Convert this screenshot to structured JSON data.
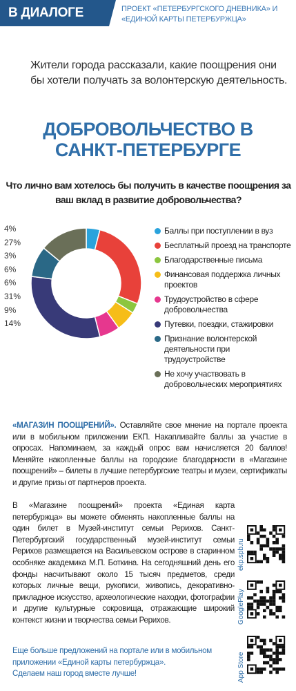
{
  "header": {
    "badge": "В ДИАЛОГЕ",
    "project": "ПРОЕКТ «ПЕТЕРБУРГСКОГО ДНЕВНИКА» И «ЕДИНОЙ КАРТЫ ПЕТЕРБУРЖЦА»"
  },
  "intro": "Жители города рассказали, какие поощрения они бы хотели получать за волонтерскую деятельность.",
  "chart_data": {
    "type": "donut",
    "title": "ДОБРОВОЛЬЧЕСТВО В САНКТ-ПЕТЕРБУРГЕ",
    "subtitle": "Что лично вам хотелось бы получить в качестве поощрения за ваш вклад в развитие добровольчества?",
    "categories": [
      "Баллы при поступлении в вуз",
      "Бесплатный проезд на транспорте",
      "Благодарственные письма",
      "Финансовая поддержка личных проектов",
      "Трудоустройство в сфере добровольчества",
      "Путевки, поездки, стажировки",
      "Признание волонтерской деятельности при трудоустройстве",
      "Не хочу участвовать в добровольческих мероприятиях"
    ],
    "values": [
      4,
      27,
      3,
      6,
      6,
      31,
      9,
      14
    ],
    "value_labels": [
      "4%",
      "27%",
      "3%",
      "6%",
      "6%",
      "31%",
      "9%",
      "14%"
    ],
    "colors": [
      "#2aa3dc",
      "#e8413a",
      "#8cc63f",
      "#f6bd18",
      "#e6378e",
      "#383a78",
      "#2a6886",
      "#6a6f58"
    ]
  },
  "article": {
    "lead": "«МАГАЗИН ПООЩРЕНИЙ».",
    "p1": " Оставляйте свое мнение на портале проекта или в мобильном приложении ЕКП. Накапливайте баллы за участие в опросах. Напоминаем, за каждый опрос вам начисляется 20 баллов! Меняйте накопленные баллы на городские благодарности в «Магазине поощрений» – билеты в лучшие петербургские театры и музеи, сертификаты и другие призы от партнеров проекта.",
    "p2": "В «Магазине поощрений» проекта «Единая карта петербуржца» вы можете обменять накопленные баллы на один билет в Музей-институт семьи Рерихов. Санкт-Петербургский государственный музей-институт семьи Рерихов размещается на Васильевском острове в старинном особняке академика М.П. Боткина. На сегодняшний день его фонды насчитывают около 15 тысяч предметов, среди которых личные вещи, рукописи, живопись, декоративно-прикладное искусство, археологические находки, фотографии и другие культурные сокровища, отражающие широкий контекст жизни и творчества семьи Рерихов.",
    "p3": "Еще больше предложений на портале или в мобильном приложении «Единой карты петербуржца».",
    "p4": "Сделаем наш город вместе лучше!"
  },
  "qr_labels": [
    "ekp.spb.ru",
    "GooglePlay",
    "App Store"
  ]
}
